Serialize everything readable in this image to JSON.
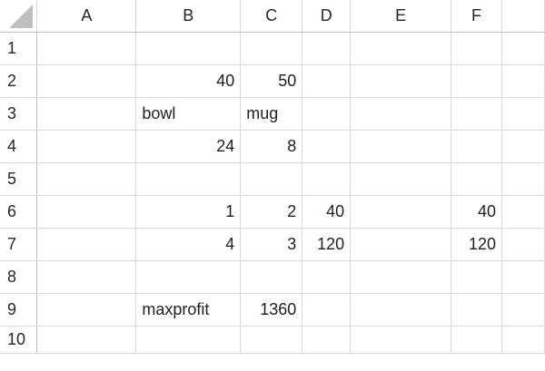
{
  "columns": [
    "A",
    "B",
    "C",
    "D",
    "E",
    "F",
    ""
  ],
  "rows": [
    {
      "num": "1",
      "cells": [
        "",
        "",
        "",
        "",
        "",
        "",
        ""
      ]
    },
    {
      "num": "2",
      "cells": [
        "",
        "40",
        "50",
        "",
        "",
        "",
        ""
      ]
    },
    {
      "num": "3",
      "cells": [
        "",
        "bowl",
        "mug",
        "",
        "",
        "",
        ""
      ]
    },
    {
      "num": "4",
      "cells": [
        "",
        "24",
        "8",
        "",
        "",
        "",
        ""
      ]
    },
    {
      "num": "5",
      "cells": [
        "",
        "",
        "",
        "",
        "",
        "",
        ""
      ]
    },
    {
      "num": "6",
      "cells": [
        "",
        "1",
        "2",
        "40",
        "",
        "40",
        ""
      ]
    },
    {
      "num": "7",
      "cells": [
        "",
        "4",
        "3",
        "120",
        "",
        "120",
        ""
      ]
    },
    {
      "num": "8",
      "cells": [
        "",
        "",
        "",
        "",
        "",
        "",
        ""
      ]
    },
    {
      "num": "9",
      "cells": [
        "",
        "maxprofit",
        "1360",
        "",
        "",
        "",
        ""
      ]
    },
    {
      "num": "10",
      "cells": [
        "",
        "",
        "",
        "",
        "",
        "",
        ""
      ]
    }
  ]
}
